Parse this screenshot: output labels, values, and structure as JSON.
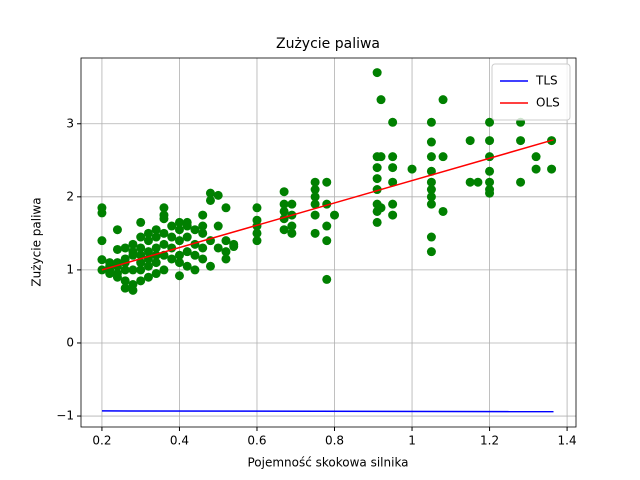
{
  "chart_data": {
    "type": "scatter",
    "title": "Zużycie paliwa",
    "x_label": "Pojemność skokowa silnika",
    "y_label": "Zużycie paliwa",
    "xlim": [
      0.146,
      1.423
    ],
    "ylim": [
      -1.15,
      3.9
    ],
    "xticks": [
      0.2,
      0.4,
      0.6,
      0.8,
      1.0,
      1.2,
      1.4
    ],
    "yticks": [
      {
        "value": -1,
        "label": "−1"
      },
      0,
      1,
      2,
      3
    ],
    "grid": true,
    "legend": "upper-right",
    "points": {
      "color": "#008000",
      "x": [
        0.2,
        0.2,
        0.2,
        0.2,
        0.2,
        0.22,
        0.22,
        0.22,
        0.22,
        0.24,
        0.24,
        0.24,
        0.24,
        0.24,
        0.24,
        0.26,
        0.26,
        0.26,
        0.26,
        0.26,
        0.26,
        0.28,
        0.28,
        0.28,
        0.28,
        0.28,
        0.28,
        0.3,
        0.3,
        0.3,
        0.3,
        0.3,
        0.3,
        0.3,
        0.32,
        0.32,
        0.32,
        0.32,
        0.32,
        0.32,
        0.34,
        0.34,
        0.34,
        0.34,
        0.34,
        0.34,
        0.36,
        0.36,
        0.36,
        0.36,
        0.36,
        0.36,
        0.36,
        0.38,
        0.38,
        0.38,
        0.38,
        0.4,
        0.4,
        0.4,
        0.4,
        0.4,
        0.4,
        0.42,
        0.42,
        0.42,
        0.42,
        0.42,
        0.44,
        0.44,
        0.44,
        0.44,
        0.46,
        0.46,
        0.46,
        0.46,
        0.46,
        0.48,
        0.48,
        0.48,
        0.48,
        0.5,
        0.5,
        0.5,
        0.52,
        0.52,
        0.52,
        0.52,
        0.54,
        0.54,
        0.6,
        0.6,
        0.6,
        0.6,
        0.6,
        0.67,
        0.67,
        0.67,
        0.67,
        0.67,
        0.69,
        0.69,
        0.69,
        0.69,
        0.75,
        0.75,
        0.75,
        0.75,
        0.75,
        0.75,
        0.78,
        0.78,
        0.78,
        0.78,
        0.78,
        0.8,
        0.91,
        0.91,
        0.91,
        0.91,
        0.91,
        0.91,
        0.91,
        0.91,
        0.92,
        0.92,
        0.92,
        0.95,
        0.95,
        0.95,
        0.95,
        0.95,
        0.95,
        1.0,
        1.05,
        1.05,
        1.05,
        1.05,
        1.05,
        1.05,
        1.05,
        1.05,
        1.05,
        1.05,
        1.08,
        1.08,
        1.08,
        1.15,
        1.15,
        1.17,
        1.2,
        1.2,
        1.2,
        1.2,
        1.2,
        1.2,
        1.2,
        1.28,
        1.28,
        1.28,
        1.32,
        1.32,
        1.36,
        1.36
      ],
      "y": [
        1.85,
        1.78,
        1.4,
        1.14,
        1.0,
        1.0,
        1.05,
        0.95,
        1.1,
        1.28,
        1.05,
        0.9,
        0.95,
        1.1,
        1.55,
        0.75,
        0.85,
        1.0,
        1.15,
        1.3,
        1.1,
        0.72,
        0.8,
        1.0,
        1.2,
        1.35,
        1.25,
        0.85,
        1.0,
        1.1,
        1.3,
        1.45,
        1.65,
        1.2,
        0.9,
        1.05,
        1.25,
        1.4,
        1.5,
        1.15,
        0.95,
        1.1,
        1.3,
        1.45,
        1.55,
        1.2,
        1.0,
        1.2,
        1.35,
        1.5,
        1.7,
        1.85,
        1.75,
        1.15,
        1.3,
        1.45,
        1.6,
        0.92,
        1.1,
        1.2,
        1.4,
        1.55,
        1.65,
        1.05,
        1.25,
        1.45,
        1.6,
        1.65,
        1.0,
        1.2,
        1.35,
        1.55,
        1.15,
        1.3,
        1.5,
        1.75,
        1.6,
        1.05,
        1.4,
        1.95,
        2.05,
        1.3,
        1.6,
        2.02,
        1.15,
        1.25,
        1.4,
        1.85,
        1.35,
        1.32,
        1.4,
        1.5,
        1.6,
        1.68,
        1.85,
        1.55,
        1.7,
        1.8,
        1.9,
        2.07,
        1.5,
        1.6,
        1.75,
        1.9,
        1.5,
        1.75,
        1.9,
        2.0,
        2.1,
        2.2,
        1.4,
        1.6,
        1.9,
        2.2,
        0.87,
        1.75,
        1.65,
        1.8,
        1.9,
        2.1,
        2.25,
        2.4,
        2.55,
        3.7,
        3.33,
        1.85,
        2.55,
        1.75,
        1.9,
        2.2,
        2.4,
        2.55,
        3.02,
        2.38,
        1.25,
        1.45,
        1.9,
        2.0,
        2.1,
        2.2,
        2.35,
        2.55,
        2.75,
        3.02,
        1.8,
        2.55,
        3.33,
        2.2,
        2.77,
        2.2,
        2.05,
        2.1,
        2.2,
        2.35,
        2.55,
        2.77,
        3.02,
        2.2,
        2.77,
        3.02,
        2.38,
        2.55,
        2.38,
        2.77
      ]
    },
    "series": [
      {
        "name": "TLS",
        "color": "#0000ff",
        "x": [
          0.2,
          1.365
        ],
        "values": [
          -0.93,
          -0.94
        ]
      },
      {
        "name": "OLS",
        "color": "#ff0000",
        "x": [
          0.2,
          1.365
        ],
        "values": [
          1.0,
          2.78
        ]
      }
    ]
  }
}
